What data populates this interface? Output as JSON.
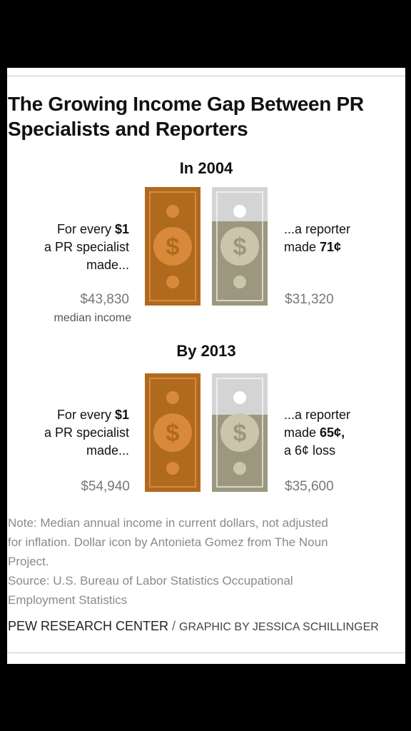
{
  "title": "The Growing Income Gap Between PR Specialists and Reporters",
  "sections": [
    {
      "year_label": "In 2004",
      "left_text": [
        "For every ",
        "$1",
        "a PR specialist",
        "made..."
      ],
      "left_amount": "$43,830",
      "left_sublabel": "median income",
      "right_text": [
        "...a reporter",
        "made ",
        "71¢"
      ],
      "right_extra": "",
      "right_amount": "$31,320"
    },
    {
      "year_label": "By 2013",
      "left_text": [
        "For every ",
        "$1",
        "a PR specialist",
        "made..."
      ],
      "left_amount": "$54,940",
      "left_sublabel": "",
      "right_text": [
        "...a reporter",
        "made ",
        "65¢,"
      ],
      "right_extra": "a 6¢ loss",
      "right_amount": "$35,600"
    }
  ],
  "note_lines": [
    "Note: Median annual income in current dollars, not adjusted",
    "for inflation. Dollar icon by Antonieta Gomez from The Noun",
    "Project.",
    "Source: U.S. Bureau of Labor Statistics Occupational",
    "Employment Statistics"
  ],
  "footer": {
    "org": "PEW RESEARCH CENTER",
    "separator": " / ",
    "credit": "GRAPHIC BY JESSICA SCHILLINGER"
  },
  "chart_data": {
    "type": "bar",
    "categories": [
      "2004",
      "2013"
    ],
    "series": [
      {
        "name": "PR specialist",
        "values": [
          43830,
          54940
        ]
      },
      {
        "name": "Reporter",
        "values": [
          31320,
          35600
        ]
      }
    ],
    "ratio_per_dollar": [
      0.71,
      0.65
    ],
    "colors": {
      "pr": "#b06a1e",
      "pr_light": "#d9893a",
      "reporter": "#9c977f",
      "reporter_empty": "#d4d4d4"
    }
  }
}
